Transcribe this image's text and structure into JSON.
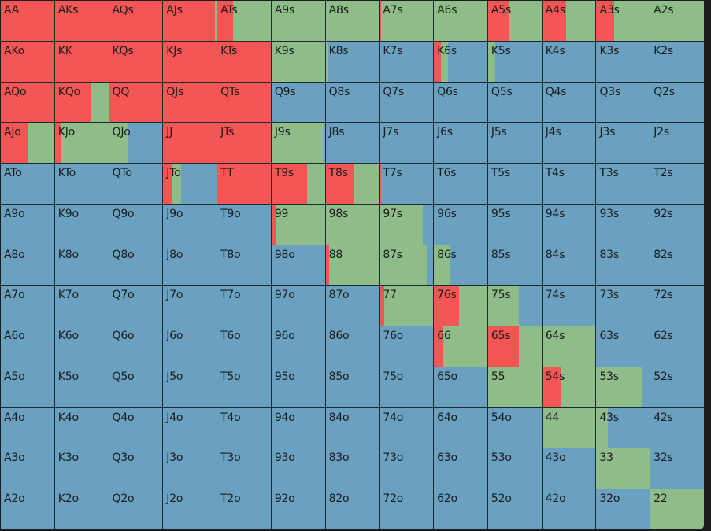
{
  "colors": {
    "raise": "#f45555",
    "call": "#8fbd89",
    "fold": "#6aa0c0"
  },
  "rows": [
    [
      {
        "h": "AA",
        "r": 1,
        "c": 0
      },
      {
        "h": "AKs",
        "r": 1,
        "c": 0
      },
      {
        "h": "AQs",
        "r": 1,
        "c": 0
      },
      {
        "h": "AJs",
        "r": 0.97,
        "c": 0.03
      },
      {
        "h": "ATs",
        "r": 0.3,
        "c": 0.7
      },
      {
        "h": "A9s",
        "r": 0,
        "c": 1
      },
      {
        "h": "A8s",
        "r": 0,
        "c": 1
      },
      {
        "h": "A7s",
        "r": 0.03,
        "c": 0.97
      },
      {
        "h": "A6s",
        "r": 0,
        "c": 1
      },
      {
        "h": "A5s",
        "r": 0.38,
        "c": 0.62
      },
      {
        "h": "A4s",
        "r": 0.44,
        "c": 0.56
      },
      {
        "h": "A3s",
        "r": 0.33,
        "c": 0.67
      },
      {
        "h": "A2s",
        "r": 0,
        "c": 1
      }
    ],
    [
      {
        "h": "AKo",
        "r": 1,
        "c": 0
      },
      {
        "h": "KK",
        "r": 1,
        "c": 0
      },
      {
        "h": "KQs",
        "r": 1,
        "c": 0
      },
      {
        "h": "KJs",
        "r": 1,
        "c": 0
      },
      {
        "h": "KTs",
        "r": 1,
        "c": 0
      },
      {
        "h": "K9s",
        "r": 0,
        "c": 1
      },
      {
        "h": "K8s",
        "r": 0,
        "c": 0.03
      },
      {
        "h": "K7s",
        "r": 0,
        "c": 0
      },
      {
        "h": "K6s",
        "r": 0.13,
        "c": 0.14
      },
      {
        "h": "K5s",
        "r": 0,
        "c": 0.14
      },
      {
        "h": "K4s",
        "r": 0,
        "c": 0
      },
      {
        "h": "K3s",
        "r": 0,
        "c": 0
      },
      {
        "h": "K2s",
        "r": 0,
        "c": 0
      }
    ],
    [
      {
        "h": "AQo",
        "r": 1,
        "c": 0
      },
      {
        "h": "KQo",
        "r": 0.68,
        "c": 0.32
      },
      {
        "h": "QQ",
        "r": 1,
        "c": 0
      },
      {
        "h": "QJs",
        "r": 1,
        "c": 0
      },
      {
        "h": "QTs",
        "r": 1,
        "c": 0
      },
      {
        "h": "Q9s",
        "r": 0,
        "c": 0
      },
      {
        "h": "Q8s",
        "r": 0,
        "c": 0
      },
      {
        "h": "Q7s",
        "r": 0,
        "c": 0
      },
      {
        "h": "Q6s",
        "r": 0,
        "c": 0
      },
      {
        "h": "Q5s",
        "r": 0,
        "c": 0
      },
      {
        "h": "Q4s",
        "r": 0,
        "c": 0
      },
      {
        "h": "Q3s",
        "r": 0,
        "c": 0
      },
      {
        "h": "Q2s",
        "r": 0,
        "c": 0
      }
    ],
    [
      {
        "h": "AJo",
        "r": 0.52,
        "c": 0.48
      },
      {
        "h": "KJo",
        "r": 0.1,
        "c": 0.9
      },
      {
        "h": "QJo",
        "r": 0,
        "c": 0.36
      },
      {
        "h": "JJ",
        "r": 1,
        "c": 0
      },
      {
        "h": "JTs",
        "r": 1,
        "c": 0
      },
      {
        "h": "J9s",
        "r": 0.02,
        "c": 0.96
      },
      {
        "h": "J8s",
        "r": 0,
        "c": 0
      },
      {
        "h": "J7s",
        "r": 0,
        "c": 0
      },
      {
        "h": "J6s",
        "r": 0,
        "c": 0
      },
      {
        "h": "J5s",
        "r": 0,
        "c": 0
      },
      {
        "h": "J4s",
        "r": 0,
        "c": 0
      },
      {
        "h": "J3s",
        "r": 0,
        "c": 0
      },
      {
        "h": "J2s",
        "r": 0,
        "c": 0
      }
    ],
    [
      {
        "h": "ATo",
        "r": 0,
        "c": 0
      },
      {
        "h": "KTo",
        "r": 0,
        "c": 0
      },
      {
        "h": "QTo",
        "r": 0,
        "c": 0
      },
      {
        "h": "JTo",
        "r": 0.18,
        "c": 0.15
      },
      {
        "h": "TT",
        "r": 1,
        "c": 0
      },
      {
        "h": "T9s",
        "r": 0.66,
        "c": 0.34
      },
      {
        "h": "T8s",
        "r": 0.54,
        "c": 0.46
      },
      {
        "h": "T7s",
        "r": 0.03,
        "c": 0
      },
      {
        "h": "T6s",
        "r": 0,
        "c": 0
      },
      {
        "h": "T5s",
        "r": 0,
        "c": 0
      },
      {
        "h": "T4s",
        "r": 0,
        "c": 0
      },
      {
        "h": "T3s",
        "r": 0,
        "c": 0
      },
      {
        "h": "T2s",
        "r": 0,
        "c": 0
      }
    ],
    [
      {
        "h": "A9o",
        "r": 0,
        "c": 0
      },
      {
        "h": "K9o",
        "r": 0,
        "c": 0
      },
      {
        "h": "Q9o",
        "r": 0,
        "c": 0
      },
      {
        "h": "J9o",
        "r": 0,
        "c": 0
      },
      {
        "h": "T9o",
        "r": 0,
        "c": 0
      },
      {
        "h": "99",
        "r": 0.07,
        "c": 0.93
      },
      {
        "h": "98s",
        "r": 0,
        "c": 1
      },
      {
        "h": "97s",
        "r": 0,
        "c": 0.8
      },
      {
        "h": "96s",
        "r": 0,
        "c": 0
      },
      {
        "h": "95s",
        "r": 0,
        "c": 0
      },
      {
        "h": "94s",
        "r": 0,
        "c": 0
      },
      {
        "h": "93s",
        "r": 0,
        "c": 0
      },
      {
        "h": "92s",
        "r": 0,
        "c": 0
      }
    ],
    [
      {
        "h": "A8o",
        "r": 0,
        "c": 0
      },
      {
        "h": "K8o",
        "r": 0,
        "c": 0
      },
      {
        "h": "Q8o",
        "r": 0,
        "c": 0
      },
      {
        "h": "J8o",
        "r": 0,
        "c": 0
      },
      {
        "h": "T8o",
        "r": 0,
        "c": 0
      },
      {
        "h": "98o",
        "r": 0,
        "c": 0
      },
      {
        "h": "88",
        "r": 0.06,
        "c": 0.94
      },
      {
        "h": "87s",
        "r": 0,
        "c": 0.88
      },
      {
        "h": "86s",
        "r": 0,
        "c": 0.3
      },
      {
        "h": "85s",
        "r": 0,
        "c": 0
      },
      {
        "h": "84s",
        "r": 0,
        "c": 0
      },
      {
        "h": "83s",
        "r": 0,
        "c": 0
      },
      {
        "h": "82s",
        "r": 0,
        "c": 0
      }
    ],
    [
      {
        "h": "A7o",
        "r": 0,
        "c": 0
      },
      {
        "h": "K7o",
        "r": 0,
        "c": 0
      },
      {
        "h": "Q7o",
        "r": 0,
        "c": 0
      },
      {
        "h": "J7o",
        "r": 0,
        "c": 0
      },
      {
        "h": "T7o",
        "r": 0,
        "c": 0
      },
      {
        "h": "97o",
        "r": 0,
        "c": 0
      },
      {
        "h": "87o",
        "r": 0,
        "c": 0
      },
      {
        "h": "77",
        "r": 0.09,
        "c": 0.91
      },
      {
        "h": "76s",
        "r": 0.47,
        "c": 0.53
      },
      {
        "h": "75s",
        "r": 0,
        "c": 0.58
      },
      {
        "h": "74s",
        "r": 0,
        "c": 0
      },
      {
        "h": "73s",
        "r": 0,
        "c": 0
      },
      {
        "h": "72s",
        "r": 0,
        "c": 0
      }
    ],
    [
      {
        "h": "A6o",
        "r": 0,
        "c": 0
      },
      {
        "h": "K6o",
        "r": 0,
        "c": 0
      },
      {
        "h": "Q6o",
        "r": 0,
        "c": 0
      },
      {
        "h": "J6o",
        "r": 0,
        "c": 0
      },
      {
        "h": "T6o",
        "r": 0,
        "c": 0
      },
      {
        "h": "96o",
        "r": 0,
        "c": 0
      },
      {
        "h": "86o",
        "r": 0,
        "c": 0
      },
      {
        "h": "76o",
        "r": 0,
        "c": 0
      },
      {
        "h": "66",
        "r": 0.18,
        "c": 0.82
      },
      {
        "h": "65s",
        "r": 0.58,
        "c": 0.42
      },
      {
        "h": "64s",
        "r": 0,
        "c": 1
      },
      {
        "h": "63s",
        "r": 0,
        "c": 0
      },
      {
        "h": "62s",
        "r": 0,
        "c": 0
      }
    ],
    [
      {
        "h": "A5o",
        "r": 0,
        "c": 0
      },
      {
        "h": "K5o",
        "r": 0,
        "c": 0
      },
      {
        "h": "Q5o",
        "r": 0,
        "c": 0
      },
      {
        "h": "J5o",
        "r": 0,
        "c": 0
      },
      {
        "h": "T5o",
        "r": 0,
        "c": 0
      },
      {
        "h": "95o",
        "r": 0,
        "c": 0
      },
      {
        "h": "85o",
        "r": 0,
        "c": 0
      },
      {
        "h": "75o",
        "r": 0,
        "c": 0
      },
      {
        "h": "65o",
        "r": 0,
        "c": 0
      },
      {
        "h": "55",
        "r": 0,
        "c": 1
      },
      {
        "h": "54s",
        "r": 0.34,
        "c": 0.66
      },
      {
        "h": "53s",
        "r": 0,
        "c": 0.85
      },
      {
        "h": "52s",
        "r": 0,
        "c": 0
      }
    ],
    [
      {
        "h": "A4o",
        "r": 0,
        "c": 0
      },
      {
        "h": "K4o",
        "r": 0,
        "c": 0
      },
      {
        "h": "Q4o",
        "r": 0,
        "c": 0
      },
      {
        "h": "J4o",
        "r": 0,
        "c": 0
      },
      {
        "h": "T4o",
        "r": 0,
        "c": 0
      },
      {
        "h": "94o",
        "r": 0,
        "c": 0
      },
      {
        "h": "84o",
        "r": 0,
        "c": 0
      },
      {
        "h": "74o",
        "r": 0,
        "c": 0
      },
      {
        "h": "64o",
        "r": 0,
        "c": 0
      },
      {
        "h": "54o",
        "r": 0,
        "c": 0
      },
      {
        "h": "44",
        "r": 0,
        "c": 1
      },
      {
        "h": "43s",
        "r": 0,
        "c": 0.22
      },
      {
        "h": "42s",
        "r": 0,
        "c": 0
      }
    ],
    [
      {
        "h": "A3o",
        "r": 0,
        "c": 0
      },
      {
        "h": "K3o",
        "r": 0,
        "c": 0
      },
      {
        "h": "Q3o",
        "r": 0,
        "c": 0
      },
      {
        "h": "J3o",
        "r": 0,
        "c": 0
      },
      {
        "h": "T3o",
        "r": 0,
        "c": 0
      },
      {
        "h": "93o",
        "r": 0,
        "c": 0
      },
      {
        "h": "83o",
        "r": 0,
        "c": 0
      },
      {
        "h": "73o",
        "r": 0,
        "c": 0
      },
      {
        "h": "63o",
        "r": 0,
        "c": 0
      },
      {
        "h": "53o",
        "r": 0,
        "c": 0
      },
      {
        "h": "43o",
        "r": 0,
        "c": 0
      },
      {
        "h": "33",
        "r": 0,
        "c": 1
      },
      {
        "h": "32s",
        "r": 0,
        "c": 0
      }
    ],
    [
      {
        "h": "A2o",
        "r": 0,
        "c": 0
      },
      {
        "h": "K2o",
        "r": 0,
        "c": 0
      },
      {
        "h": "Q2o",
        "r": 0,
        "c": 0
      },
      {
        "h": "J2o",
        "r": 0,
        "c": 0
      },
      {
        "h": "T2o",
        "r": 0,
        "c": 0
      },
      {
        "h": "92o",
        "r": 0,
        "c": 0
      },
      {
        "h": "82o",
        "r": 0,
        "c": 0
      },
      {
        "h": "72o",
        "r": 0,
        "c": 0
      },
      {
        "h": "62o",
        "r": 0,
        "c": 0
      },
      {
        "h": "52o",
        "r": 0,
        "c": 0
      },
      {
        "h": "42o",
        "r": 0,
        "c": 0
      },
      {
        "h": "32o",
        "r": 0,
        "c": 0
      },
      {
        "h": "22",
        "r": 0,
        "c": 1
      }
    ]
  ]
}
